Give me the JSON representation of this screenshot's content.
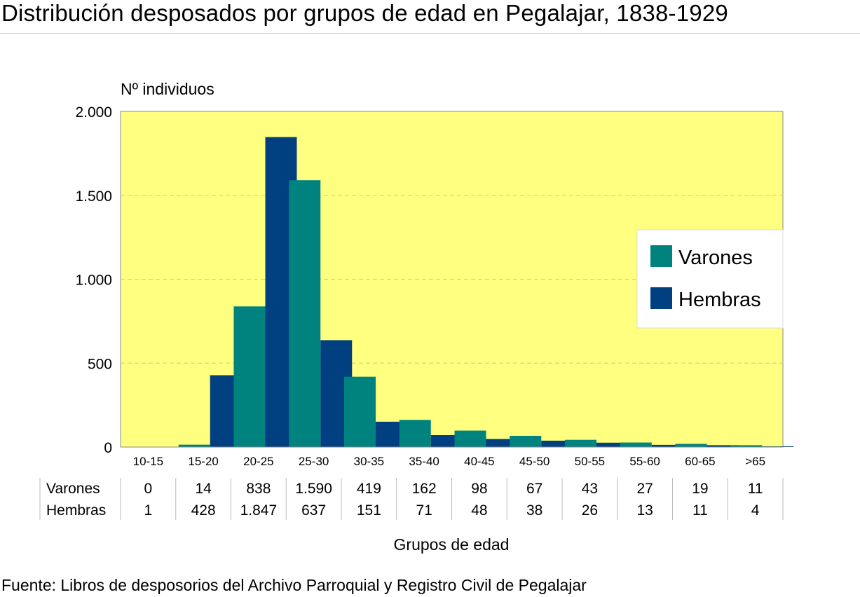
{
  "title": "Distribución desposados por grupos de edad en Pegalajar, 1838-1929",
  "source": "Fuente: Libros de desposorios del Archivo Parroquial y Registro Civil de Pegalajar",
  "colors": {
    "plot_background": "#ffff80",
    "varones": "#00827f",
    "hembras": "#003f80"
  },
  "chart_data": {
    "type": "bar",
    "categories": [
      "10-15",
      "15-20",
      "20-25",
      "25-30",
      "30-35",
      "35-40",
      "40-45",
      "45-50",
      "50-55",
      "55-60",
      "60-65",
      ">65"
    ],
    "series": [
      {
        "name": "Varones",
        "values": [
          0,
          14,
          838,
          1590,
          419,
          162,
          98,
          67,
          43,
          27,
          19,
          11
        ],
        "labels": [
          "0",
          "14",
          "838",
          "1.590",
          "419",
          "162",
          "98",
          "67",
          "43",
          "27",
          "19",
          "11"
        ]
      },
      {
        "name": "Hembras",
        "values": [
          1,
          428,
          1847,
          637,
          151,
          71,
          48,
          38,
          26,
          13,
          11,
          4
        ],
        "labels": [
          "1",
          "428",
          "1.847",
          "637",
          "151",
          "71",
          "48",
          "38",
          "26",
          "13",
          "11",
          "4"
        ]
      }
    ],
    "ylabel": "Nº individuos",
    "xlabel": "Grupos de edad",
    "ylim": [
      0,
      2000
    ],
    "yticks": [
      0,
      500,
      1000,
      1500,
      2000
    ],
    "ytick_labels": [
      "0",
      "500",
      "1.000",
      "1.500",
      "2.000"
    ],
    "grid": "dashed horizontal",
    "legend": "right",
    "data_table": true
  }
}
